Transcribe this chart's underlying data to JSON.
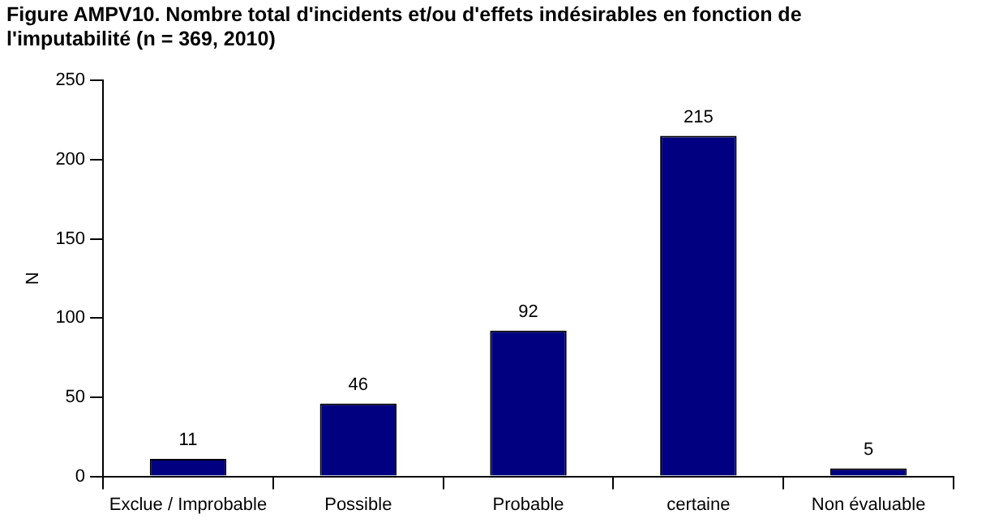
{
  "chart_data": {
    "type": "bar",
    "title": "Figure AMPV10. Nombre total d'incidents et/ou d'effets indésirables en fonction de l'imputabilité (n = 369, 2010)",
    "ylabel": "N",
    "categories": [
      "Exclue / Improbable",
      "Possible",
      "Probable",
      "certaine",
      "Non évaluable"
    ],
    "values": [
      11,
      46,
      92,
      215,
      5
    ],
    "color": "#000080",
    "ylim": [
      0,
      250
    ],
    "yticks": [
      0,
      50,
      100,
      150,
      200,
      250
    ],
    "grid": false,
    "data_labels": true,
    "legend": false
  }
}
